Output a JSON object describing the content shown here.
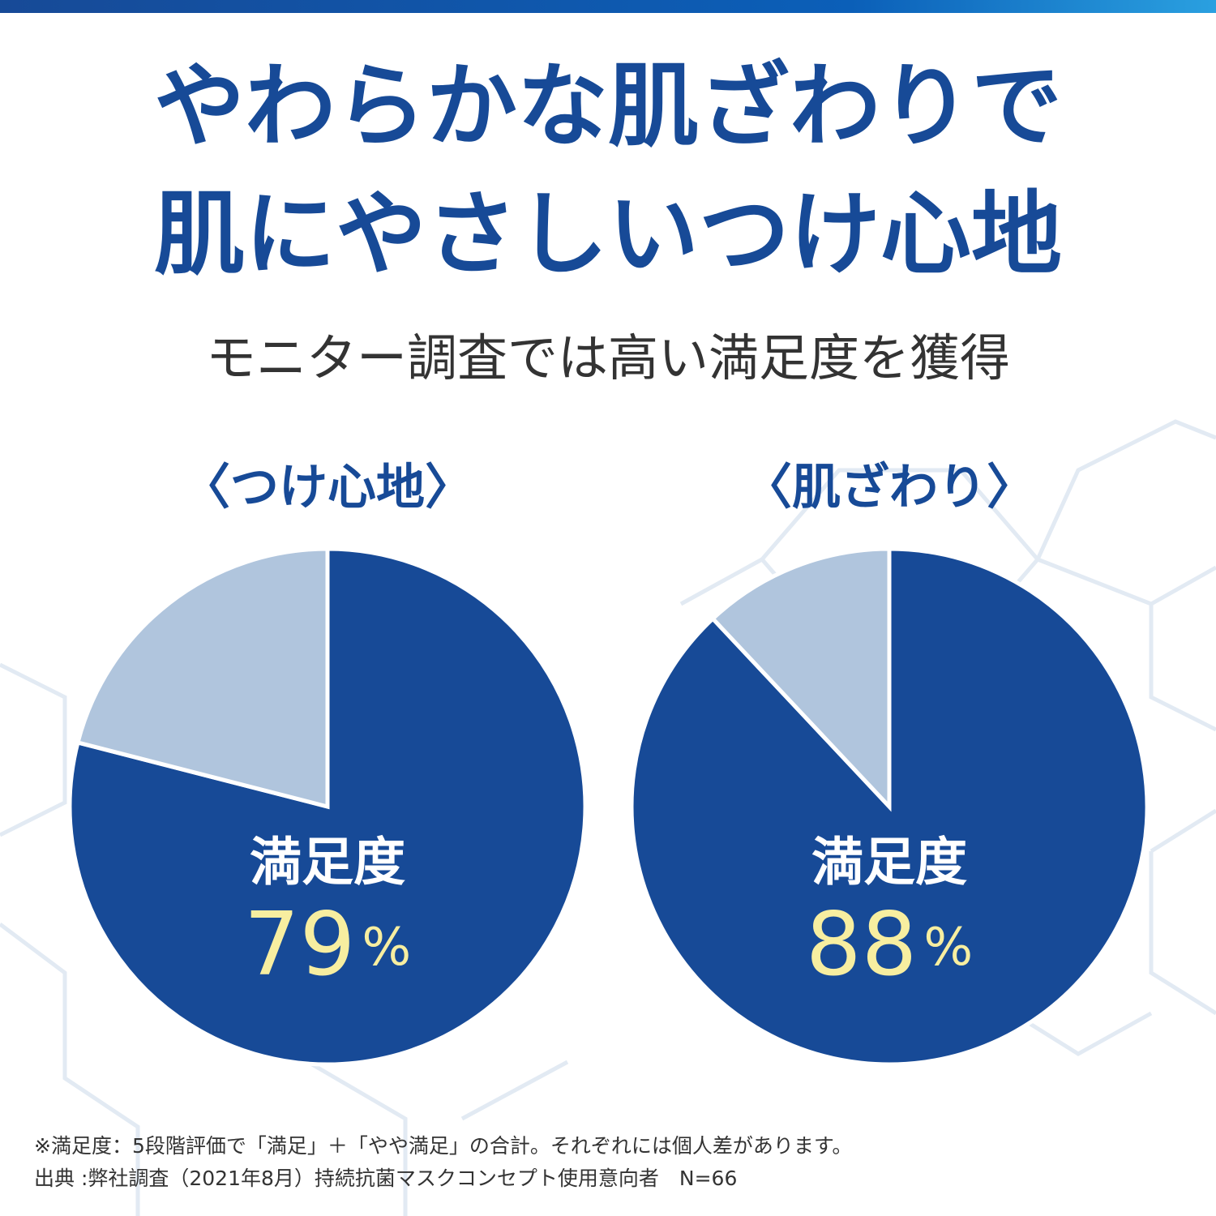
{
  "header": {
    "title_lines": [
      "やわらかな肌ざわりで",
      "肌にやさしいつけ心地"
    ],
    "subtitle": "モニター調査では高い満足度を獲得"
  },
  "chart_data": [
    {
      "type": "pie",
      "title": "〈つけ心地〉",
      "categories": [
        "満足度",
        null
      ],
      "values": [
        79,
        21
      ],
      "value_labels": [
        "79%",
        null
      ],
      "colors": [
        "#174a97",
        "#b0c5dd"
      ]
    },
    {
      "type": "pie",
      "title": "〈肌ざわり〉",
      "categories": [
        "満足度",
        null
      ],
      "values": [
        88,
        12
      ],
      "value_labels": [
        "88%",
        null
      ],
      "colors": [
        "#174a97",
        "#b0c5dd"
      ]
    }
  ],
  "notes": [
    "※満足度：5段階評価で「満足」＋「やや満足」の合計。それぞれには個人差があります。",
    "出典 :弊社調査（2021年8月）持続抗菌マスクコンセプト使用意向者　N=66"
  ]
}
